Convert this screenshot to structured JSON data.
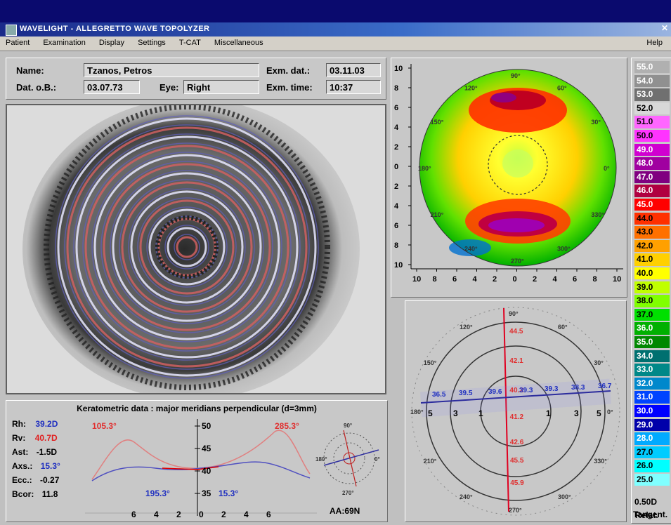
{
  "window": {
    "title": "WAVELIGHT - ALLEGRETTO WAVE TOPOLYZER"
  },
  "menu": [
    "Patient",
    "Examination",
    "Display",
    "Settings",
    "T-CAT",
    "Miscellaneous"
  ],
  "menu_help": "Help",
  "patient": {
    "name_label": "Name:",
    "name": "Tzanos, Petros",
    "dob_label": "Dat. o.B.:",
    "dob": "03.07.73",
    "eye_label": "Eye:",
    "eye": "Right",
    "exam_date_label": "Exm. dat.:",
    "exam_date": "03.11.03",
    "exam_time_label": "Exm. time:",
    "exam_time": "10:37"
  },
  "map": {
    "y_ticks": [
      "10",
      "8",
      "6",
      "4",
      "2",
      "0",
      "2",
      "4",
      "6",
      "8",
      "10"
    ],
    "x_ticks": [
      "10",
      "8",
      "6",
      "4",
      "2",
      "0",
      "2",
      "4",
      "6",
      "8",
      "10"
    ],
    "angles": [
      "90°",
      "120°",
      "150°",
      "180°",
      "210°",
      "240°",
      "270°",
      "300°",
      "330°",
      "0°",
      "30°",
      "60°"
    ]
  },
  "scale": {
    "values": [
      "55.0",
      "54.0",
      "53.0",
      "52.0",
      "51.0",
      "50.0",
      "49.0",
      "48.0",
      "47.0",
      "46.0",
      "45.0",
      "44.0",
      "43.0",
      "42.0",
      "41.0",
      "40.0",
      "39.0",
      "38.0",
      "37.0",
      "36.0",
      "35.0",
      "34.0",
      "33.0",
      "32.0",
      "31.0",
      "30.0",
      "29.0",
      "28.0",
      "27.0",
      "26.0",
      "25.0"
    ],
    "colors": [
      "#b0b0b0",
      "#909090",
      "#707070",
      "#d8d8d8",
      "#ff66ff",
      "#ff33ff",
      "#d000d0",
      "#a000a0",
      "#800080",
      "#b00040",
      "#ff0000",
      "#ff3000",
      "#ff7000",
      "#ffa000",
      "#ffd000",
      "#ffff00",
      "#c0ff00",
      "#80ff00",
      "#00e000",
      "#00b000",
      "#008800",
      "#007070",
      "#008888",
      "#0088cc",
      "#0044ff",
      "#0000ff",
      "#0000aa",
      "#00aaff",
      "#00ccff",
      "#00ffff",
      "#80ffff"
    ],
    "step": "0.50D",
    "mode": "Tangent.",
    "mode2": "Relat."
  },
  "polar": {
    "angles": [
      "90°",
      "60°",
      "30°",
      "0°",
      "330°",
      "300°",
      "270°",
      "240°",
      "210°",
      "180°",
      "150°",
      "120°"
    ],
    "vertical_values": [
      "44.5",
      "42.1",
      "40.2",
      "41.2",
      "42.6",
      "45.5",
      "45.9"
    ],
    "horizontal_values": [
      "36.5",
      "39.5",
      "39.6",
      "39.3",
      "39.3",
      "38.3",
      "36.7"
    ],
    "ring_labels": [
      "5",
      "3",
      "1",
      "1",
      "3",
      "5"
    ]
  },
  "kerato": {
    "title": "Keratometric data : major meridians perpendicular (d=3mm)",
    "rh_label": "Rh:",
    "rh": "39.2D",
    "rv_label": "Rv:",
    "rv": "40.7D",
    "ast_label": "Ast:",
    "ast": "-1.5D",
    "axs_label": "Axs.:",
    "axs": "15.3°",
    "ecc_label": "Ecc.:",
    "ecc": "-0.27",
    "bcor_label": "Bcor:",
    "bcor": "11.8",
    "axis_red_left": "105.3°",
    "axis_red_right": "285.3°",
    "axis_blue_left": "195.3°",
    "axis_blue_right": "15.3°",
    "y_ticks": [
      "50",
      "45",
      "40",
      "35"
    ],
    "x_ticks": [
      "6",
      "4",
      "2",
      "0",
      "2",
      "4",
      "6"
    ],
    "code": "AA:69N"
  },
  "mini_polar": {
    "angles": [
      "90°",
      "0°",
      "270°",
      "180°"
    ]
  }
}
